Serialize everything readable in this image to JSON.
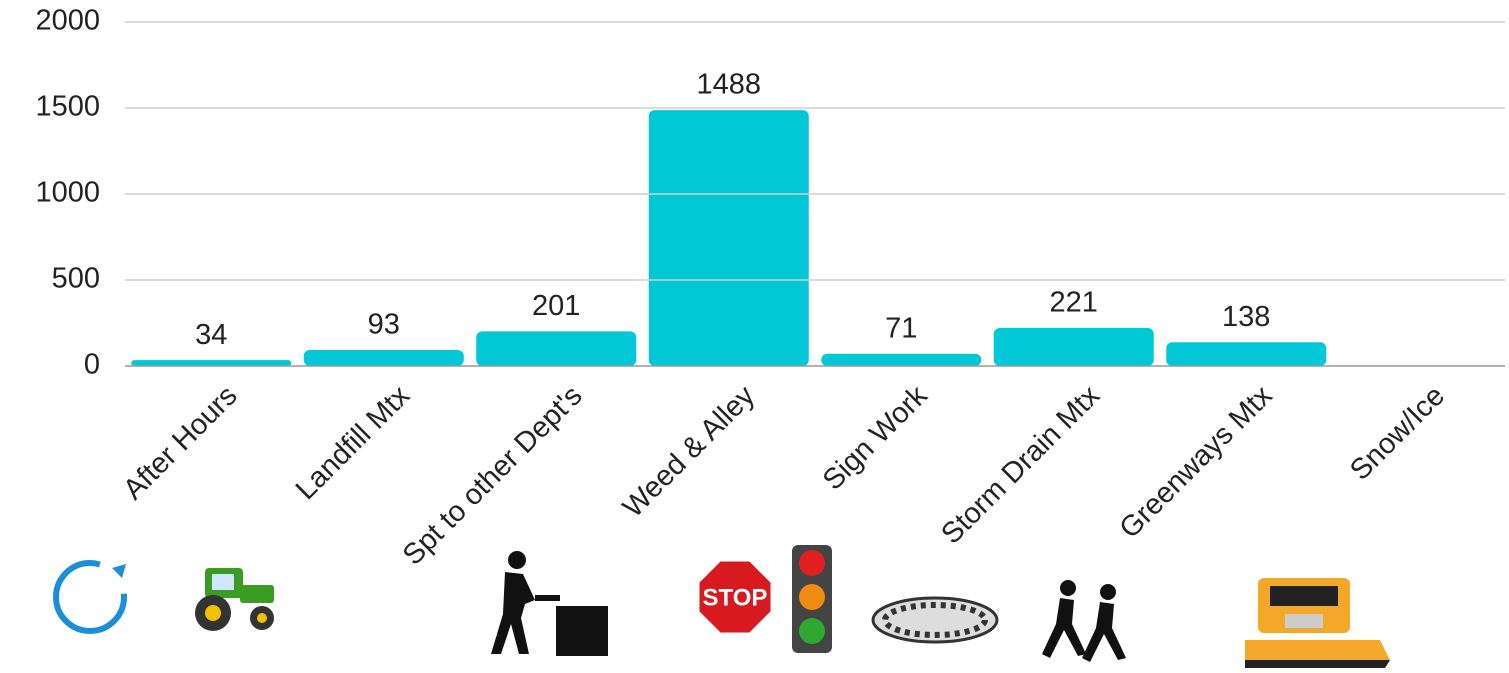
{
  "chart_data": {
    "type": "bar",
    "categories": [
      "After Hours",
      "Landfill Mtx",
      "Spt to other Dept's",
      "Weed & Alley",
      "Sign Work",
      "Storm Drain Mtx",
      "Greenways Mtx",
      "Snow/Ice"
    ],
    "values": [
      34,
      93,
      201,
      1488,
      71,
      221,
      138,
      null
    ],
    "color": "#00c8d7",
    "ylim": [
      0,
      2000
    ],
    "yticks": [
      0,
      500,
      1000,
      1500,
      2000
    ],
    "grid": true
  }
}
